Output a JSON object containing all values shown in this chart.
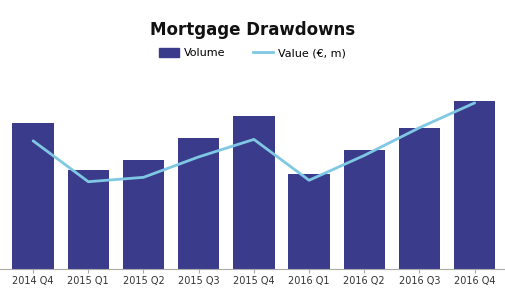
{
  "title": "Mortgage Drawdowns",
  "categories": [
    "2014 Q4",
    "2015 Q1",
    "2015 Q2",
    "2015 Q3",
    "2015 Q4",
    "2016 Q1",
    "2016 Q2",
    "2016 Q3",
    "2016 Q4"
  ],
  "bar_values": [
    100,
    68,
    75,
    90,
    105,
    65,
    82,
    97,
    115
  ],
  "line_values": [
    88,
    60,
    63,
    77,
    89,
    61,
    78,
    97,
    114
  ],
  "bar_color": "#3B3B8C",
  "line_color": "#7EC8E3",
  "background_color": "#FFFFFF",
  "title_fontsize": 12,
  "legend_volume": "Volume",
  "legend_value": "Value (€, m)",
  "bar_width": 0.75,
  "ylim": [
    0,
    130
  ]
}
